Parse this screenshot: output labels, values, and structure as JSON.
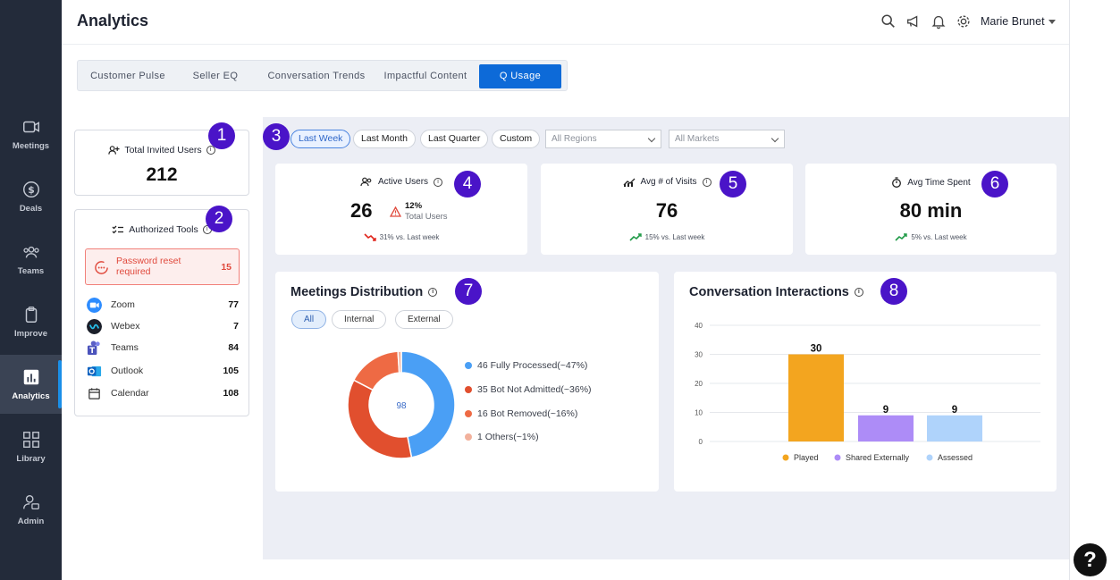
{
  "header": {
    "title": "Analytics",
    "user_name": "Marie Brunet"
  },
  "sidebar": {
    "items": [
      {
        "label": "Meetings",
        "icon": "video-icon"
      },
      {
        "label": "Deals",
        "icon": "dollar-icon"
      },
      {
        "label": "Teams",
        "icon": "team-icon"
      },
      {
        "label": "Improve",
        "icon": "clipboard-icon"
      },
      {
        "label": "Analytics",
        "icon": "chart-icon",
        "active": true
      },
      {
        "label": "Library",
        "icon": "grid-icon"
      },
      {
        "label": "Admin",
        "icon": "admin-icon"
      }
    ]
  },
  "tabs": [
    "Customer Pulse",
    "Seller EQ",
    "Conversation Trends",
    "Impactful Content",
    "Q Usage"
  ],
  "active_tab": "Q Usage",
  "invited": {
    "title": "Total Invited Users",
    "value": "212",
    "badge": "1"
  },
  "tools": {
    "title": "Authorized Tools",
    "badge": "2",
    "password_label": "Password reset required",
    "password_count": "15",
    "items": [
      {
        "name": "Zoom",
        "count": "77",
        "color": "#2d8cff"
      },
      {
        "name": "Webex",
        "count": "7",
        "color": "#1b1f2a"
      },
      {
        "name": "Teams",
        "count": "84",
        "color": "#5b5fc7"
      },
      {
        "name": "Outlook",
        "count": "105",
        "color": "#0f63c0"
      },
      {
        "name": "Calendar",
        "count": "108",
        "color": "#ffffff"
      }
    ]
  },
  "filters": {
    "badge": "3",
    "ranges": [
      "Last Week",
      "Last Month",
      "Last Quarter",
      "Custom"
    ],
    "active": "Last Week",
    "regions": "All Regions",
    "markets": "All Markets"
  },
  "kpis": {
    "active_users": {
      "title": "Active Users",
      "value": "26",
      "pct": "12%",
      "pct_label": "Total Users",
      "trend": "31% vs. Last week",
      "badge": "4"
    },
    "visits": {
      "title": "Avg # of Visits",
      "value": "76",
      "trend": "15% vs. Last week",
      "badge": "5"
    },
    "time": {
      "title": "Avg Time Spent",
      "value": "80 min",
      "trend": "5% vs. Last week",
      "badge": "6"
    }
  },
  "meetings": {
    "title": "Meetings Distribution",
    "badge": "7",
    "filters": [
      "All",
      "Internal",
      "External"
    ],
    "center": "98",
    "legend": [
      "46 Fully Processed(~47%)",
      "35 Bot Not Admitted(~36%)",
      "16 Bot Removed(~16%)",
      "1 Others(~1%)"
    ]
  },
  "conversation": {
    "title": "Conversation Interactions",
    "badge": "8"
  },
  "chart_data": [
    {
      "type": "pie",
      "labels": [
        "Fully Processed",
        "Bot Not Admitted",
        "Bot Removed",
        "Others"
      ],
      "values": [
        46,
        35,
        16,
        1
      ],
      "colors": [
        "#4a9ff5",
        "#e14f2e",
        "#ee6a44",
        "#f2b19c"
      ]
    },
    {
      "type": "bar",
      "categories": [
        "Played",
        "Shared Externally",
        "Assessed"
      ],
      "values": [
        30,
        9,
        9
      ],
      "colors": [
        "#f3a51f",
        "#ad8cf7",
        "#afd3fb"
      ],
      "ylim": [
        0,
        40
      ],
      "yticks": [
        "0",
        "10",
        "20",
        "30",
        "40"
      ],
      "grid": true,
      "legend_position": "bottom"
    }
  ],
  "help": "?"
}
